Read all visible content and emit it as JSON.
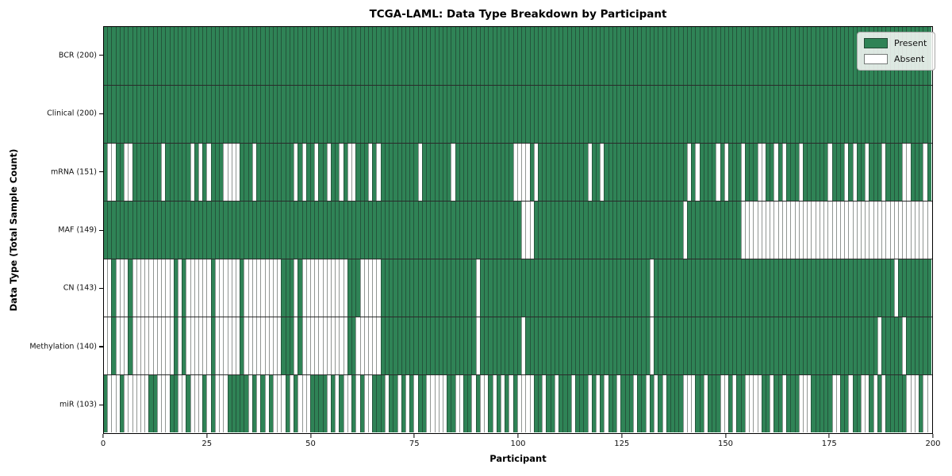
{
  "title": "TCGA-LAML: Data Type Breakdown by Participant",
  "xlabel": "Participant",
  "ylabel": "Data Type (Total Sample Count)",
  "legend": {
    "present_label": "Present",
    "absent_label": "Absent"
  },
  "chart_data": {
    "type": "heatmap",
    "x_axis_label": "Participant",
    "y_axis_label": "Data Type (Total Sample Count)",
    "x_range": [
      0,
      200
    ],
    "x_ticks": [
      0,
      25,
      50,
      75,
      100,
      125,
      150,
      175,
      200
    ],
    "legend_position": "upper right",
    "colors": {
      "present": "#2f8356",
      "absent": "#ffffff",
      "cell_edge": "rgba(25,35,30,0.48)"
    },
    "value_encoding": {
      "1": "Present",
      "0": "Absent"
    },
    "rows": [
      {
        "label": "BCR (200)",
        "name": "BCR",
        "present_count": 200,
        "values": "11111111111111111111111111111111111111111111111111111111111111111111111111111111111111111111111111111111111111111111111111111111111111111111111111111111111111111111111111111111111111111111111111111111"
      },
      {
        "label": "Clinical (200)",
        "name": "Clinical",
        "present_count": 200,
        "values": "11111111111111111111111111111111111111111111111111111111111111111111111111111111111111111111111111111111111111111111111111111111111111111111111111111111111111111111111111111111111111111111111111111111"
      },
      {
        "label": "mRNA (151)",
        "name": "mRNA",
        "present_count": 151,
        "values": "10011001111111011111101010111000011101111111110101101101101001110101111111110111111101111111111111100001011111111111101101111111111111111111101011110101110111001101011101111110111010110111011110011101"
      },
      {
        "label": "MAF (149)",
        "name": "MAF",
        "present_count": 149,
        "values": "11111111111111111111111111111111111111111111111111111111111111111111111111111111111111111111111111111000111111111111111111111111111111111111011111111111110000000000000000000000000000000000000000000000"
      },
      {
        "label": "CN (143)",
        "name": "CN",
        "present_count": 143,
        "values": "00100010000000000101000000100000010000000001110100000000000111000001111111111111111111111101111111111111111111111111111111111111111101111111111111111111111111111111111111111111111111111111111011111111"
      },
      {
        "label": "Methylation (140)",
        "name": "Methylation",
        "present_count": 140,
        "values": "00100010000000000101000000100000010000000001110100000000000110000001111111111111111111111101111111111011111111111111111111111111111101111111111111111111111111111111111111111111111111111110111110111111"
      },
      {
        "label": "miR (103)",
        "name": "miR",
        "present_count": 103,
        "values": "10001000000110001100100010100011111010101000101000111101010010100111011010101100000110011010010101010000110110111011101010110111011010101111000110111001011000011011011100011111001101100101011111000100"
      }
    ]
  }
}
